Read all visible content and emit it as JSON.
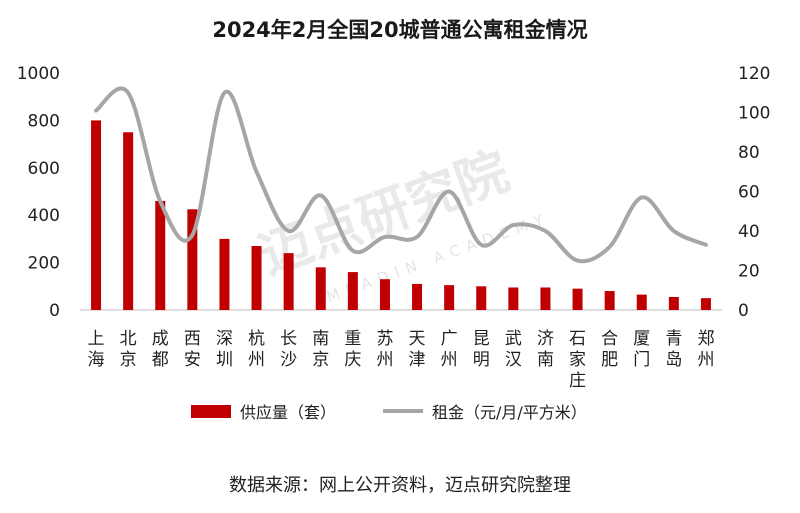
{
  "chart_data": {
    "type": "bar+line",
    "title": "2024年2月全国20城普通公寓租金情况",
    "categories": [
      "上海",
      "北京",
      "成都",
      "西安",
      "深圳",
      "杭州",
      "长沙",
      "南京",
      "重庆",
      "苏州",
      "天津",
      "广州",
      "昆明",
      "武汉",
      "济南",
      "石家庄",
      "合肥",
      "厦门",
      "青岛",
      "郑州"
    ],
    "series": [
      {
        "name": "供应量（套）",
        "type": "bar",
        "axis": "left",
        "color": "#c00000",
        "values": [
          800,
          750,
          460,
          425,
          300,
          270,
          240,
          180,
          160,
          130,
          110,
          105,
          100,
          95,
          95,
          90,
          80,
          65,
          55,
          50
        ]
      },
      {
        "name": "租金（元/月/平方米）",
        "type": "line",
        "axis": "right",
        "color": "#a6a6a6",
        "values": [
          101,
          110,
          55,
          38,
          110,
          70,
          40,
          58,
          30,
          37,
          37,
          60,
          33,
          43,
          40,
          25,
          32,
          57,
          40,
          33
        ]
      }
    ],
    "y_left": {
      "min": 0,
      "max": 1000,
      "ticks": [
        0,
        200,
        400,
        600,
        800,
        1000
      ]
    },
    "y_right": {
      "min": 0,
      "max": 120,
      "ticks": [
        0,
        20,
        40,
        60,
        80,
        100,
        120
      ]
    },
    "grid": false,
    "legend_position": "bottom"
  },
  "watermark": {
    "text": "迈点研究院",
    "subtext": "MEADIN ACADEMY"
  },
  "source_note": "数据来源：网上公开资料，迈点研究院整理"
}
